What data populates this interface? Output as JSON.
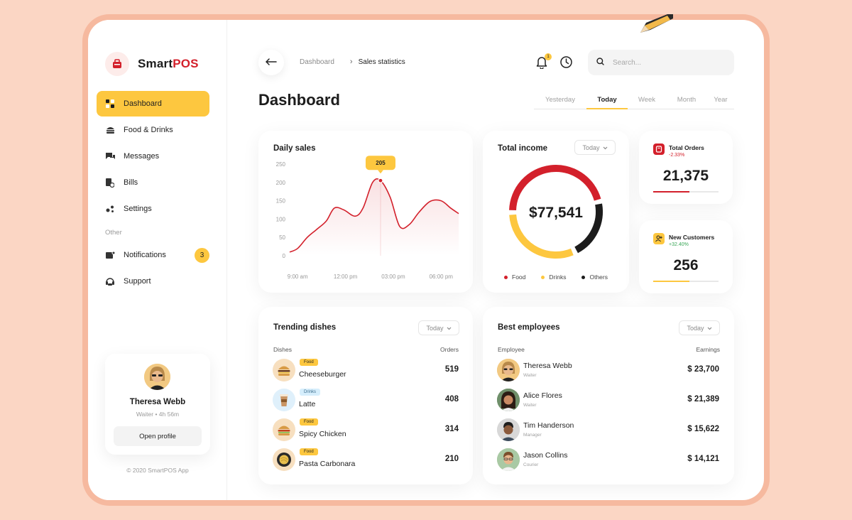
{
  "app": {
    "name_part1": "Smart",
    "name_part2": "POS"
  },
  "sidebar": {
    "items": [
      {
        "label": "Dashboard",
        "icon": "dashboard-icon",
        "active": true
      },
      {
        "label": "Food & Drinks",
        "icon": "burger-icon"
      },
      {
        "label": "Messages",
        "icon": "messages-icon"
      },
      {
        "label": "Bills",
        "icon": "bills-icon"
      },
      {
        "label": "Settings",
        "icon": "settings-icon"
      }
    ],
    "other_label": "Other",
    "other_items": [
      {
        "label": "Notifications",
        "icon": "notification-icon",
        "badge": "3"
      },
      {
        "label": "Support",
        "icon": "support-icon"
      }
    ],
    "profile": {
      "name": "Theresa Webb",
      "meta": "Waiter • 4h 56m",
      "button": "Open profile"
    },
    "copyright": "© 2020 SmartPOS App"
  },
  "header": {
    "breadcrumb": [
      "Dashboard",
      "Sales statistics"
    ],
    "bell_count": "1",
    "search_placeholder": "Search..."
  },
  "page_title": "Dashboard",
  "periods": [
    {
      "label": "Yesterday"
    },
    {
      "label": "Today",
      "active": true
    },
    {
      "label": "Week"
    },
    {
      "label": "Month"
    },
    {
      "label": "Year"
    }
  ],
  "colors": {
    "accent": "#fdc73f",
    "brand_red": "#d3202b",
    "dark": "#1c1c1c",
    "green": "#3aa757"
  },
  "daily_sales": {
    "title": "Daily sales",
    "tooltip": "205"
  },
  "total_income": {
    "title": "Total income",
    "filter": "Today",
    "amount": "$77,541",
    "legend": [
      {
        "label": "Food",
        "color": "#d3202b"
      },
      {
        "label": "Drinks",
        "color": "#fdc73f"
      },
      {
        "label": "Others",
        "color": "#1c1c1c"
      }
    ]
  },
  "stats": [
    {
      "title": "Total Orders",
      "change": "-2.33%",
      "value": "21,375",
      "color": "#d3202b",
      "progress": 0.55
    },
    {
      "title": "New Customers",
      "change": "+32.40%",
      "value": "256",
      "color": "#fdc73f",
      "progress": 0.55
    }
  ],
  "trending": {
    "title": "Trending dishes",
    "filter": "Today",
    "col_left": "Dishes",
    "col_right": "Orders",
    "rows": [
      {
        "tag": "Food",
        "name": "Cheeseburger",
        "value": "519",
        "thumb": "burger"
      },
      {
        "tag": "Drinks",
        "name": "Latte",
        "value": "408",
        "thumb": "latte"
      },
      {
        "tag": "Food",
        "name": "Spicy Chicken",
        "value": "314",
        "thumb": "burger"
      },
      {
        "tag": "Food",
        "name": "Pasta Carbonara",
        "value": "210",
        "thumb": "pasta"
      }
    ]
  },
  "employees": {
    "title": "Best employees",
    "filter": "Today",
    "col_left": "Employee",
    "col_right": "Earnings",
    "rows": [
      {
        "name": "Theresa Webb",
        "role": "Waiter",
        "value": "$ 23,700"
      },
      {
        "name": "Alice Flores",
        "role": "Waiter",
        "value": "$ 21,389"
      },
      {
        "name": "Tim Handerson",
        "role": "Manager",
        "value": "$ 15,622"
      },
      {
        "name": "Jason Collins",
        "role": "Courier",
        "value": "$ 14,121"
      }
    ]
  },
  "chart_data": [
    {
      "type": "area",
      "title": "Daily sales",
      "x_ticks": [
        "9:00 am",
        "12:00 pm",
        "03:00 pm",
        "06:00 pm"
      ],
      "y_ticks": [
        0,
        50,
        100,
        150,
        200,
        250
      ],
      "ylim": [
        0,
        250
      ],
      "x": [
        8.5,
        9,
        9.6,
        10.2,
        10.8,
        11.3,
        11.9,
        12.6,
        13.1,
        13.7,
        14.2,
        14.8,
        15.4,
        16,
        16.6,
        17.3,
        18,
        18.6,
        19.1
      ],
      "values": [
        10,
        20,
        50,
        72,
        95,
        130,
        125,
        108,
        130,
        200,
        205,
        160,
        80,
        85,
        118,
        148,
        150,
        130,
        115
      ],
      "annotation": {
        "x": 14.2,
        "y": 205,
        "label": "205"
      }
    },
    {
      "type": "pie",
      "title": "Total income",
      "categories": [
        "Food",
        "Drinks",
        "Others"
      ],
      "values": [
        45,
        30,
        20
      ],
      "colors": [
        "#d3202b",
        "#fdc73f",
        "#1c1c1c"
      ]
    }
  ]
}
